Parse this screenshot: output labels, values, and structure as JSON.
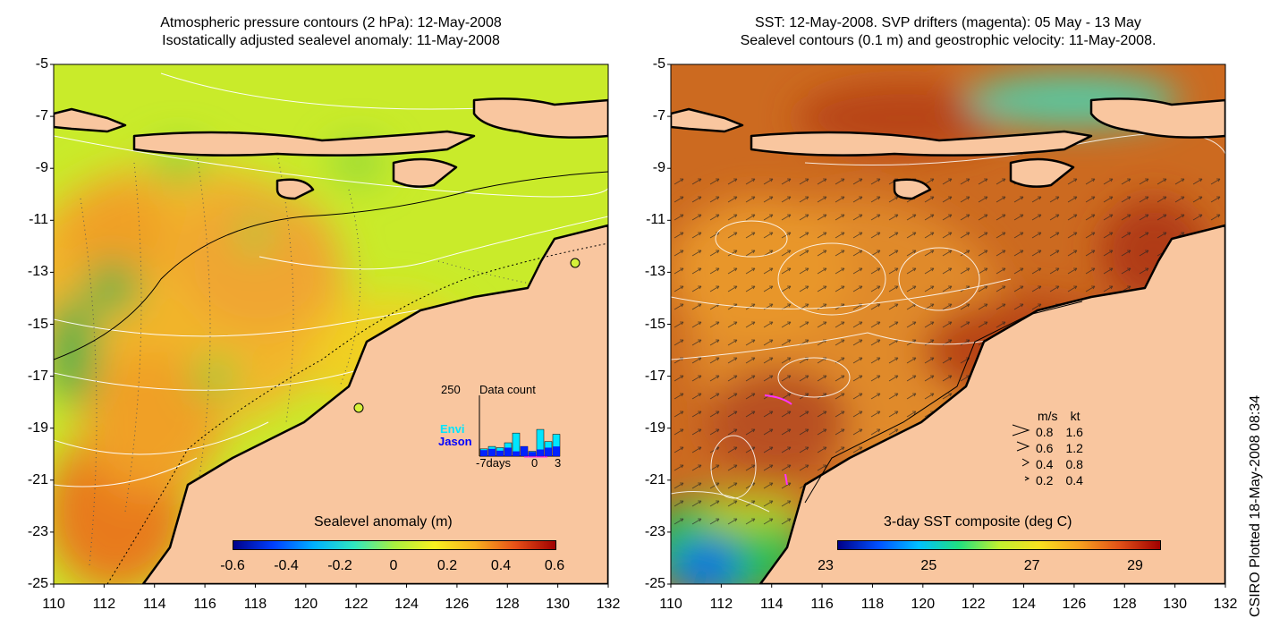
{
  "left_panel": {
    "title_line1": "Atmospheric pressure contours (2 hPa): 12-May-2008",
    "title_line2": "Isostatically adjusted sealevel anomaly: 11-May-2008",
    "colorbar_title": "Sealevel anomaly (m)",
    "colorbar_ticks": [
      "-0.6",
      "-0.4",
      "-0.2",
      "0",
      "0.2",
      "0.4",
      "0.6"
    ],
    "histogram": {
      "y_max_label": "250",
      "title": "Data count",
      "series_envi_label": "Envi",
      "series_jason_label": "Jason",
      "x_start_label": "-7days",
      "x_zero_label": "0",
      "x_end_label": "3",
      "envi_counts": [
        30,
        40,
        35,
        55,
        95,
        40,
        20,
        110,
        60,
        90
      ],
      "jason_counts": [
        50,
        60,
        45,
        70,
        40,
        80,
        35,
        55,
        70,
        80
      ]
    }
  },
  "right_panel": {
    "title_line1": "SST: 12-May-2008. SVP drifters (magenta): 05 May - 13 May",
    "title_line2": "Sealevel contours (0.1 m) and geostrophic velocity: 11-May-2008.",
    "colorbar_title": "3-day SST composite (deg C)",
    "colorbar_ticks": [
      "23",
      "25",
      "27",
      "29"
    ],
    "velocity_legend": {
      "header_ms": "m/s",
      "header_kt": "kt",
      "rows": [
        {
          "ms": "0.8",
          "kt": "1.6"
        },
        {
          "ms": "0.6",
          "kt": "1.2"
        },
        {
          "ms": "0.4",
          "kt": "0.8"
        },
        {
          "ms": "0.2",
          "kt": "0.4"
        }
      ]
    }
  },
  "axes": {
    "y_labels": [
      "-5",
      "-7",
      "-9",
      "-11",
      "-13",
      "-15",
      "-17",
      "-19",
      "-21",
      "-23",
      "-25"
    ],
    "x_labels": [
      "110",
      "112",
      "114",
      "116",
      "118",
      "120",
      "122",
      "124",
      "126",
      "128",
      "130",
      "132"
    ]
  },
  "credit": "CSIRO Plotted 18-May-2008 08:34",
  "colors": {
    "land": "#f9c69f",
    "sla_background": "#c6eb2a",
    "sst_background": "#cc6a20",
    "coastline": "#000000",
    "pressure_contour": "#ffffff",
    "envi": "#00e6ff",
    "jason": "#0000ff"
  }
}
